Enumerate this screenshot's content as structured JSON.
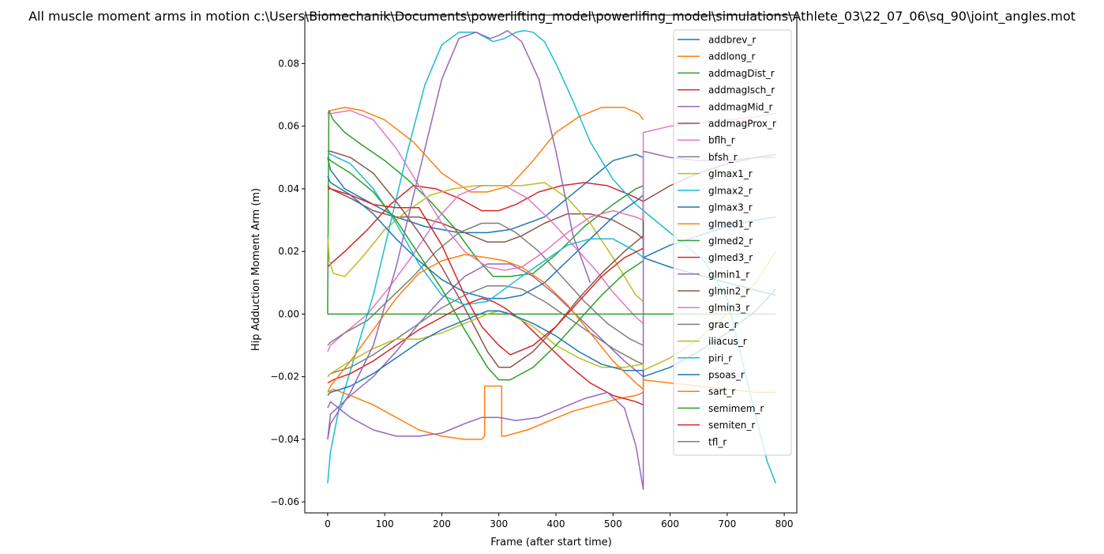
{
  "chart_data": {
    "type": "line",
    "title": "All muscle moment arms in motion c:\\Users\\Biomechanik\\Documents\\powerlifting_model\\powerlifing_model\\simulations\\Athlete_03\\22_07_06\\sq_90\\joint_angles.mot",
    "xlabel": "Frame (after start time)",
    "ylabel": "Hip Adduction Moment Arm (m)",
    "xlim": [
      -40,
      822
    ],
    "ylim": [
      -0.0635,
      0.0955
    ],
    "xticks": [
      0,
      100,
      200,
      300,
      400,
      500,
      600,
      700,
      800
    ],
    "yticks": [
      -0.06,
      -0.04,
      -0.02,
      0.0,
      0.02,
      0.04,
      0.06,
      0.08
    ],
    "xtick_labels": [
      "0",
      "100",
      "200",
      "300",
      "400",
      "500",
      "600",
      "700",
      "800"
    ],
    "ytick_labels": [
      "−0.06",
      "−0.04",
      "−0.02",
      "0.00",
      "0.02",
      "0.04",
      "0.06",
      "0.08"
    ],
    "grid": false,
    "legend_position": "top-right",
    "series": [
      {
        "name": "addbrev_r",
        "color": "#1f77b4",
        "x": [
          0,
          5,
          30,
          70,
          120,
          170,
          230,
          280,
          320,
          380,
          440,
          500,
          540,
          553,
          553,
          600,
          650,
          700,
          750,
          785
        ],
        "y": [
          0.05,
          0.046,
          0.04,
          0.036,
          0.031,
          0.028,
          0.026,
          0.026,
          0.027,
          0.031,
          0.04,
          0.049,
          0.051,
          0.05,
          0.018,
          0.022,
          0.025,
          0.028,
          0.03,
          0.031
        ]
      },
      {
        "name": "addlong_r",
        "color": "#ff7f0e",
        "x": [
          0,
          5,
          30,
          60,
          100,
          150,
          200,
          250,
          280,
          320,
          360,
          400,
          440,
          480,
          520,
          545,
          553
        ],
        "y": [
          0.064,
          0.065,
          0.066,
          0.065,
          0.062,
          0.055,
          0.045,
          0.039,
          0.039,
          0.041,
          0.049,
          0.058,
          0.063,
          0.066,
          0.066,
          0.064,
          0.062
        ]
      },
      {
        "name": "addmagDist_r",
        "color": "#2ca02c",
        "x": [
          0,
          2,
          10,
          30,
          60,
          100,
          140,
          180,
          220,
          260,
          290,
          320,
          360,
          400,
          450,
          500,
          540,
          553
        ],
        "y": [
          0.0,
          0.065,
          0.062,
          0.058,
          0.054,
          0.049,
          0.043,
          0.036,
          0.028,
          0.018,
          0.012,
          0.012,
          0.013,
          0.019,
          0.028,
          0.035,
          0.04,
          0.041
        ]
      },
      {
        "name": "addmagIsch_r",
        "color": "#d62728",
        "x": [
          0,
          5,
          30,
          70,
          110,
          150,
          190,
          230,
          270,
          300,
          330,
          370,
          410,
          450,
          490,
          530,
          553
        ],
        "y": [
          0.015,
          0.016,
          0.02,
          0.027,
          0.035,
          0.041,
          0.04,
          0.037,
          0.033,
          0.033,
          0.035,
          0.039,
          0.041,
          0.042,
          0.041,
          0.038,
          0.036
        ]
      },
      {
        "name": "addmagMid_r",
        "color": "#9467bd",
        "x": [
          0,
          5,
          40,
          80,
          120,
          160,
          200,
          240,
          280,
          320,
          360,
          400,
          440,
          480,
          520,
          553
        ],
        "y": [
          -0.04,
          -0.032,
          -0.026,
          -0.02,
          -0.012,
          -0.003,
          0.005,
          0.012,
          0.016,
          0.016,
          0.012,
          0.006,
          -0.001,
          -0.008,
          -0.015,
          -0.02
        ]
      },
      {
        "name": "addmagProx_r",
        "color": "#8c564b",
        "x": [
          0,
          5,
          40,
          80,
          120,
          160,
          200,
          240,
          280,
          310,
          340,
          380,
          420,
          460,
          500,
          540,
          553
        ],
        "y": [
          0.04,
          0.04,
          0.037,
          0.033,
          0.031,
          0.031,
          0.029,
          0.026,
          0.023,
          0.023,
          0.025,
          0.029,
          0.032,
          0.032,
          0.03,
          0.026,
          0.024
        ]
      },
      {
        "name": "bflh_r",
        "color": "#e377c2",
        "x": [
          0,
          5,
          30,
          70,
          110,
          150,
          190,
          230,
          270,
          310,
          350,
          390,
          430,
          470,
          500,
          540,
          553
        ],
        "y": [
          -0.012,
          -0.01,
          -0.006,
          0.0,
          0.009,
          0.019,
          0.03,
          0.038,
          0.041,
          0.041,
          0.037,
          0.03,
          0.022,
          0.014,
          0.007,
          -0.001,
          -0.003
        ]
      },
      {
        "name": "bfsh_r",
        "color": "#7f7f7f",
        "x": [
          0,
          5,
          30,
          70,
          110,
          150,
          190,
          230,
          270,
          300,
          330,
          370,
          410,
          450,
          490,
          530,
          553
        ],
        "y": [
          -0.01,
          -0.009,
          -0.006,
          -0.002,
          0.005,
          0.012,
          0.02,
          0.026,
          0.029,
          0.029,
          0.026,
          0.02,
          0.012,
          0.004,
          -0.003,
          -0.008,
          -0.01
        ]
      },
      {
        "name": "glmax1_r",
        "color": "#bcbd22",
        "x": [
          0,
          3,
          10,
          30,
          60,
          100,
          140,
          180,
          220,
          260,
          300,
          340,
          380,
          420,
          460,
          500,
          540,
          553
        ],
        "y": [
          0.025,
          0.017,
          0.013,
          0.012,
          0.018,
          0.027,
          0.033,
          0.038,
          0.04,
          0.041,
          0.041,
          0.041,
          0.042,
          0.037,
          0.029,
          0.018,
          0.006,
          0.004
        ]
      },
      {
        "name": "glmax2_r",
        "color": "#17becf",
        "x": [
          0,
          5,
          20,
          50,
          80,
          110,
          140,
          170,
          200,
          230,
          260,
          290,
          310,
          330,
          345,
          360,
          380,
          400,
          430,
          460,
          500,
          540,
          580,
          620,
          660,
          700,
          740,
          770,
          785
        ],
        "y": [
          -0.054,
          -0.044,
          -0.03,
          -0.012,
          0.006,
          0.029,
          0.052,
          0.073,
          0.086,
          0.09,
          0.09,
          0.087,
          0.088,
          0.09,
          0.0905,
          0.09,
          0.087,
          0.08,
          0.068,
          0.055,
          0.043,
          0.035,
          0.029,
          0.023,
          0.017,
          0.005,
          -0.025,
          -0.047,
          -0.054
        ]
      },
      {
        "name": "glmax3_r",
        "color": "#1f77b4",
        "x": [
          0,
          5,
          40,
          80,
          120,
          160,
          200,
          240,
          280,
          310,
          340,
          380,
          420,
          460,
          500,
          540,
          553,
          553,
          600,
          700,
          785
        ],
        "y": [
          0.044,
          0.042,
          0.038,
          0.032,
          0.024,
          0.017,
          0.011,
          0.007,
          0.005,
          0.005,
          0.006,
          0.01,
          0.017,
          0.024,
          0.031,
          0.036,
          0.038,
          0.018,
          0.015,
          0.01,
          0.006
        ]
      },
      {
        "name": "glmed1_r",
        "color": "#ff7f0e",
        "x": [
          0,
          10,
          40,
          80,
          120,
          160,
          200,
          240,
          270,
          275,
          275,
          305,
          305,
          310,
          350,
          390,
          430,
          470,
          510,
          540,
          553
        ],
        "y": [
          -0.025,
          -0.024,
          -0.026,
          -0.029,
          -0.033,
          -0.037,
          -0.039,
          -0.04,
          -0.04,
          -0.039,
          -0.023,
          -0.023,
          -0.039,
          -0.039,
          -0.037,
          -0.034,
          -0.031,
          -0.029,
          -0.027,
          -0.026,
          -0.025
        ]
      },
      {
        "name": "glmed2_r",
        "color": "#2ca02c",
        "x": [
          0,
          10,
          40,
          80,
          120,
          160,
          200,
          240,
          280,
          300,
          320,
          360,
          400,
          440,
          480,
          520,
          553,
          553,
          600,
          650,
          700,
          750,
          785
        ],
        "y": [
          0.0,
          0.0,
          0.0,
          0.0,
          0.0,
          0.0,
          0.0,
          0.0,
          0.0,
          0.0,
          0.0,
          0.0,
          0.0,
          0.0,
          0.0,
          0.0,
          0.0,
          0.0,
          0.0,
          0.0,
          0.0,
          0.0,
          0.0
        ]
      },
      {
        "name": "glmed3_r",
        "color": "#d62728",
        "x": [
          0,
          10,
          40,
          80,
          120,
          160,
          200,
          240,
          270,
          290,
          310,
          340,
          380,
          420,
          460,
          500,
          540,
          553
        ],
        "y": [
          -0.022,
          -0.021,
          -0.019,
          -0.015,
          -0.01,
          -0.005,
          -0.001,
          0.003,
          0.005,
          0.004,
          0.002,
          -0.002,
          -0.009,
          -0.016,
          -0.022,
          -0.026,
          -0.028,
          -0.029
        ]
      },
      {
        "name": "glmin1_r",
        "color": "#9467bd",
        "x": [
          0,
          5,
          40,
          80,
          120,
          160,
          200,
          240,
          270,
          300,
          330,
          370,
          410,
          450,
          490,
          520,
          540,
          553,
          553,
          600,
          650,
          700,
          750,
          785
        ],
        "y": [
          -0.03,
          -0.028,
          -0.033,
          -0.037,
          -0.039,
          -0.039,
          -0.038,
          -0.035,
          -0.033,
          -0.033,
          -0.034,
          -0.033,
          -0.03,
          -0.027,
          -0.025,
          -0.03,
          -0.042,
          -0.056,
          0.052,
          0.05,
          0.049,
          0.049,
          0.05,
          0.05
        ]
      },
      {
        "name": "glmin2_r",
        "color": "#8c564b",
        "x": [
          0,
          5,
          40,
          80,
          120,
          160,
          200,
          240,
          280,
          300,
          320,
          360,
          400,
          440,
          480,
          520,
          553,
          553,
          600,
          650,
          700,
          750,
          785
        ],
        "y": [
          0.052,
          0.052,
          0.05,
          0.045,
          0.036,
          0.026,
          0.015,
          0.002,
          -0.012,
          -0.017,
          -0.017,
          -0.012,
          -0.004,
          0.005,
          0.013,
          0.02,
          0.025,
          0.036,
          0.041,
          0.045,
          0.048,
          0.05,
          0.051
        ]
      },
      {
        "name": "glmin3_r",
        "color": "#e377c2",
        "x": [
          0,
          5,
          40,
          80,
          120,
          160,
          200,
          240,
          280,
          310,
          340,
          380,
          420,
          460,
          500,
          540,
          553,
          553,
          600,
          650,
          700,
          750,
          785
        ],
        "y": [
          0.063,
          0.064,
          0.065,
          0.062,
          0.053,
          0.041,
          0.029,
          0.02,
          0.015,
          0.014,
          0.015,
          0.02,
          0.026,
          0.031,
          0.033,
          0.031,
          0.03,
          0.058,
          0.06,
          0.061,
          0.062,
          0.063,
          0.064
        ]
      },
      {
        "name": "grac_r",
        "color": "#7f7f7f",
        "x": [
          0,
          5,
          40,
          80,
          120,
          160,
          200,
          240,
          280,
          310,
          340,
          380,
          420,
          460,
          500,
          540,
          553
        ],
        "y": [
          -0.02,
          -0.019,
          -0.017,
          -0.013,
          -0.008,
          -0.003,
          0.002,
          0.006,
          0.009,
          0.009,
          0.008,
          0.004,
          -0.001,
          -0.006,
          -0.011,
          -0.015,
          -0.016
        ]
      },
      {
        "name": "iliacus_r",
        "color": "#bcbd22",
        "x": [
          0,
          5,
          40,
          80,
          120,
          160,
          200,
          240,
          280,
          300,
          320,
          360,
          400,
          440,
          480,
          520,
          553,
          553,
          600,
          650,
          700,
          750,
          785
        ],
        "y": [
          -0.02,
          -0.019,
          -0.015,
          -0.011,
          -0.008,
          -0.008,
          -0.006,
          -0.003,
          0.0,
          0.001,
          0.0,
          -0.004,
          -0.01,
          -0.014,
          -0.017,
          -0.017,
          -0.016,
          -0.018,
          -0.014,
          -0.008,
          0.0,
          0.01,
          0.02
        ]
      },
      {
        "name": "piri_r",
        "color": "#17becf",
        "x": [
          0,
          5,
          40,
          80,
          120,
          160,
          200,
          240,
          280,
          310,
          340,
          380,
          420,
          460,
          500,
          540,
          553
        ],
        "y": [
          0.052,
          0.051,
          0.048,
          0.04,
          0.029,
          0.016,
          0.006,
          0.003,
          0.004,
          0.008,
          0.012,
          0.017,
          0.022,
          0.024,
          0.024,
          0.02,
          0.018
        ]
      },
      {
        "name": "psoas_r",
        "color": "#1f77b4",
        "x": [
          0,
          5,
          40,
          80,
          120,
          160,
          200,
          240,
          280,
          300,
          320,
          360,
          400,
          440,
          480,
          520,
          553,
          553,
          600,
          650,
          700,
          750,
          785
        ],
        "y": [
          -0.026,
          -0.025,
          -0.023,
          -0.019,
          -0.014,
          -0.009,
          -0.005,
          -0.002,
          0.001,
          0.001,
          0.0,
          -0.003,
          -0.007,
          -0.012,
          -0.016,
          -0.018,
          -0.018,
          -0.02,
          -0.017,
          -0.012,
          -0.006,
          0.001,
          0.008
        ]
      },
      {
        "name": "sart_r",
        "color": "#ff7f0e",
        "x": [
          0,
          5,
          40,
          80,
          120,
          160,
          200,
          240,
          280,
          310,
          340,
          380,
          420,
          460,
          500,
          540,
          553,
          553,
          600,
          650,
          700,
          750,
          785
        ],
        "y": [
          -0.025,
          -0.023,
          -0.015,
          -0.005,
          0.005,
          0.013,
          0.017,
          0.019,
          0.018,
          0.017,
          0.015,
          0.01,
          0.003,
          -0.006,
          -0.015,
          -0.022,
          -0.024,
          -0.021,
          -0.022,
          -0.023,
          -0.024,
          -0.025,
          -0.025
        ]
      },
      {
        "name": "semimem_r",
        "color": "#2ca02c",
        "x": [
          0,
          5,
          40,
          80,
          120,
          160,
          200,
          240,
          280,
          300,
          320,
          360,
          400,
          440,
          480,
          520,
          553
        ],
        "y": [
          0.05,
          0.049,
          0.045,
          0.039,
          0.03,
          0.019,
          0.008,
          -0.005,
          -0.017,
          -0.021,
          -0.021,
          -0.017,
          -0.01,
          -0.002,
          0.006,
          0.013,
          0.017
        ]
      },
      {
        "name": "semiten_r",
        "color": "#d62728",
        "x": [
          0,
          5,
          40,
          80,
          120,
          160,
          200,
          240,
          270,
          300,
          320,
          360,
          400,
          440,
          480,
          520,
          553
        ],
        "y": [
          0.041,
          0.04,
          0.038,
          0.035,
          0.034,
          0.034,
          0.022,
          0.006,
          -0.004,
          -0.01,
          -0.013,
          -0.01,
          -0.004,
          0.004,
          0.012,
          0.018,
          0.021
        ]
      },
      {
        "name": "tfl_r",
        "color": "#9467bd",
        "x": [
          0,
          5,
          40,
          80,
          120,
          160,
          200,
          230,
          260,
          285,
          300,
          315,
          340,
          370,
          400,
          430,
          460
        ],
        "y": [
          -0.04,
          -0.035,
          -0.025,
          -0.01,
          0.015,
          0.045,
          0.075,
          0.088,
          0.09,
          0.088,
          0.089,
          0.0905,
          0.087,
          0.075,
          0.052,
          0.025,
          0.01
        ]
      }
    ]
  }
}
